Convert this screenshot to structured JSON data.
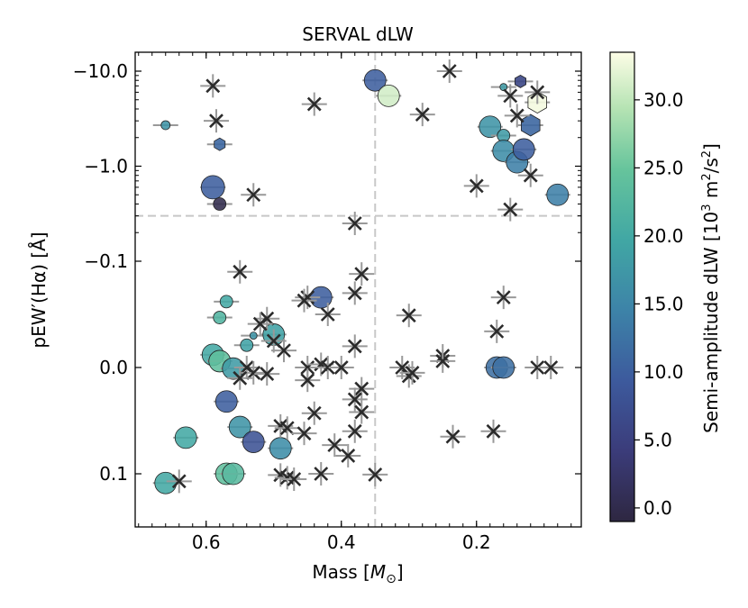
{
  "chart_data": {
    "type": "scatter",
    "title": "SERVAL dLW",
    "xlabel_text": "Mass [",
    "xlabel_sym": "M",
    "xlabel_sub": "⊙",
    "xlabel_end": "]",
    "ylabel_pre": "pEW",
    "ylabel_prime": "′",
    "ylabel_mid": "(Hα) [Å]",
    "cbar_label_pre": "Semi-amplitude dLW [10",
    "cbar_label_sup": "3",
    "cbar_label_mid": " m",
    "cbar_label_sup2": "2",
    "cbar_label_mid2": "/s",
    "cbar_label_sup3": "2",
    "cbar_label_end": "]",
    "x_reversed": true,
    "xlim": [
      0.705,
      0.045
    ],
    "y_scale": "symlog-inverted",
    "x_ticks": [
      {
        "v": 0.6,
        "label": "0.6"
      },
      {
        "v": 0.4,
        "label": "0.4"
      },
      {
        "v": 0.2,
        "label": "0.2"
      }
    ],
    "y_ticks": [
      {
        "v": -10,
        "label": "−10.0"
      },
      {
        "v": -1,
        "label": "−1.0"
      },
      {
        "v": -0.1,
        "label": "−0.1"
      },
      {
        "v": 0,
        "label": "0.0"
      },
      {
        "v": 0.1,
        "label": "0.1"
      }
    ],
    "cbar_range": [
      -1,
      33.5
    ],
    "cbar_ticks": [
      {
        "v": 0,
        "label": "0.0"
      },
      {
        "v": 5,
        "label": "5.0"
      },
      {
        "v": 10,
        "label": "10.0"
      },
      {
        "v": 15,
        "label": "15.0"
      },
      {
        "v": 20,
        "label": "20.0"
      },
      {
        "v": 25,
        "label": "25.0"
      },
      {
        "v": 30,
        "label": "30.0"
      }
    ],
    "dashed_lines": {
      "x": 0.35,
      "y": -0.3
    },
    "series": [
      {
        "marker": "circle",
        "points": [
          {
            "x": 0.66,
            "y": -2.7,
            "c": 17,
            "s": 5
          },
          {
            "x": 0.35,
            "y": -8,
            "c": 10,
            "s": 12
          },
          {
            "x": 0.33,
            "y": -5.5,
            "c": 31,
            "s": 12
          },
          {
            "x": 0.59,
            "y": -0.6,
            "c": 10,
            "s": 13
          },
          {
            "x": 0.58,
            "y": -0.4,
            "c": 0,
            "s": 7
          },
          {
            "x": 0.18,
            "y": -2.6,
            "c": 17,
            "s": 12
          },
          {
            "x": 0.16,
            "y": -2.1,
            "c": 18,
            "s": 7
          },
          {
            "x": 0.16,
            "y": -1.45,
            "c": 16,
            "s": 12
          },
          {
            "x": 0.14,
            "y": -1.1,
            "c": 14,
            "s": 12
          },
          {
            "x": 0.13,
            "y": -1.5,
            "c": 10,
            "s": 12
          },
          {
            "x": 0.08,
            "y": -0.5,
            "c": 14,
            "s": 12
          },
          {
            "x": 0.16,
            "y": -6.8,
            "c": 18,
            "s": 4
          },
          {
            "x": 0.57,
            "y": -0.062,
            "c": 20,
            "s": 7
          },
          {
            "x": 0.58,
            "y": -0.047,
            "c": 22,
            "s": 7
          },
          {
            "x": 0.43,
            "y": -0.066,
            "c": 10,
            "s": 12
          },
          {
            "x": 0.53,
            "y": -0.03,
            "c": 17,
            "s": 4
          },
          {
            "x": 0.5,
            "y": -0.031,
            "c": 19,
            "s": 12
          },
          {
            "x": 0.54,
            "y": -0.021,
            "c": 19,
            "s": 7
          },
          {
            "x": 0.59,
            "y": -0.012,
            "c": 20,
            "s": 12
          },
          {
            "x": 0.58,
            "y": -0.006,
            "c": 24,
            "s": 12
          },
          {
            "x": 0.56,
            "y": 0.001,
            "c": 18,
            "s": 12
          },
          {
            "x": 0.17,
            "y": 0,
            "c": 12,
            "s": 12
          },
          {
            "x": 0.16,
            "y": 0,
            "c": 12,
            "s": 12
          },
          {
            "x": 0.57,
            "y": 0.032,
            "c": 10,
            "s": 12
          },
          {
            "x": 0.55,
            "y": 0.056,
            "c": 17,
            "s": 12
          },
          {
            "x": 0.63,
            "y": 0.066,
            "c": 20,
            "s": 12
          },
          {
            "x": 0.53,
            "y": 0.07,
            "c": 8,
            "s": 12
          },
          {
            "x": 0.49,
            "y": 0.076,
            "c": 16,
            "s": 12
          },
          {
            "x": 0.57,
            "y": 0.1,
            "c": 24,
            "s": 12
          },
          {
            "x": 0.56,
            "y": 0.1,
            "c": 23,
            "s": 12
          },
          {
            "x": 0.66,
            "y": 0.125,
            "c": 20,
            "s": 12
          }
        ]
      },
      {
        "marker": "hexagon",
        "points": [
          {
            "x": 0.135,
            "y": -7.8,
            "c": 6,
            "s": 7
          },
          {
            "x": 0.11,
            "y": -4.7,
            "c": 33,
            "s": 12
          },
          {
            "x": 0.12,
            "y": -2.7,
            "c": 11,
            "s": 12
          },
          {
            "x": 0.58,
            "y": -1.7,
            "c": 11,
            "s": 7
          }
        ]
      },
      {
        "marker": "x",
        "points": [
          {
            "x": 0.24,
            "y": -10,
            "c": 0
          },
          {
            "x": 0.59,
            "y": -7,
            "c": 0
          },
          {
            "x": 0.44,
            "y": -4.5,
            "c": 0
          },
          {
            "x": 0.28,
            "y": -3.5,
            "c": 0
          },
          {
            "x": 0.585,
            "y": -3.0,
            "c": 0
          },
          {
            "x": 0.14,
            "y": -3.4,
            "c": 0
          },
          {
            "x": 0.15,
            "y": -5.5,
            "c": 0
          },
          {
            "x": 0.11,
            "y": -6.0,
            "c": 0
          },
          {
            "x": 0.12,
            "y": -0.8,
            "c": 0
          },
          {
            "x": 0.2,
            "y": -0.62,
            "c": 0
          },
          {
            "x": 0.53,
            "y": -0.5,
            "c": 0
          },
          {
            "x": 0.15,
            "y": -0.35,
            "c": 0
          },
          {
            "x": 0.38,
            "y": -0.25,
            "c": 0
          },
          {
            "x": 0.55,
            "y": -0.09,
            "c": 0
          },
          {
            "x": 0.37,
            "y": -0.088,
            "c": 0
          },
          {
            "x": 0.38,
            "y": -0.07,
            "c": 0
          },
          {
            "x": 0.45,
            "y": -0.066,
            "c": 0
          },
          {
            "x": 0.455,
            "y": -0.063,
            "c": 0
          },
          {
            "x": 0.42,
            "y": -0.05,
            "c": 0
          },
          {
            "x": 0.16,
            "y": -0.066,
            "c": 0
          },
          {
            "x": 0.3,
            "y": -0.049,
            "c": 0
          },
          {
            "x": 0.51,
            "y": -0.046,
            "c": 0
          },
          {
            "x": 0.52,
            "y": -0.041,
            "c": 0
          },
          {
            "x": 0.17,
            "y": -0.034,
            "c": 0
          },
          {
            "x": 0.5,
            "y": -0.025,
            "c": 0
          },
          {
            "x": 0.485,
            "y": -0.016,
            "c": 0
          },
          {
            "x": 0.38,
            "y": -0.02,
            "c": 0
          },
          {
            "x": 0.25,
            "y": -0.011,
            "c": 0
          },
          {
            "x": 0.25,
            "y": -0.006,
            "c": 0
          },
          {
            "x": 0.54,
            "y": 0,
            "c": 0
          },
          {
            "x": 0.53,
            "y": 0.005,
            "c": 0
          },
          {
            "x": 0.45,
            "y": 0,
            "c": 0
          },
          {
            "x": 0.43,
            "y": -0.003,
            "c": 0
          },
          {
            "x": 0.42,
            "y": 0.0,
            "c": 0
          },
          {
            "x": 0.4,
            "y": 0,
            "c": 0
          },
          {
            "x": 0.31,
            "y": 0,
            "c": 0
          },
          {
            "x": 0.3,
            "y": 0.008,
            "c": 0
          },
          {
            "x": 0.295,
            "y": 0.005,
            "c": 0
          },
          {
            "x": 0.11,
            "y": 0,
            "c": 0
          },
          {
            "x": 0.09,
            "y": 0,
            "c": 0
          },
          {
            "x": 0.55,
            "y": 0.01,
            "c": 0
          },
          {
            "x": 0.51,
            "y": 0.006,
            "c": 0
          },
          {
            "x": 0.45,
            "y": 0.012,
            "c": 0
          },
          {
            "x": 0.37,
            "y": 0.02,
            "c": 0
          },
          {
            "x": 0.38,
            "y": 0.03,
            "c": 0
          },
          {
            "x": 0.37,
            "y": 0.042,
            "c": 0
          },
          {
            "x": 0.44,
            "y": 0.043,
            "c": 0
          },
          {
            "x": 0.49,
            "y": 0.055,
            "c": 0
          },
          {
            "x": 0.48,
            "y": 0.057,
            "c": 0
          },
          {
            "x": 0.38,
            "y": 0.06,
            "c": 0
          },
          {
            "x": 0.455,
            "y": 0.062,
            "c": 0
          },
          {
            "x": 0.175,
            "y": 0.06,
            "c": 0
          },
          {
            "x": 0.235,
            "y": 0.065,
            "c": 0
          },
          {
            "x": 0.39,
            "y": 0.083,
            "c": 0
          },
          {
            "x": 0.41,
            "y": 0.073,
            "c": 0
          },
          {
            "x": 0.49,
            "y": 0.103,
            "c": 0
          },
          {
            "x": 0.43,
            "y": 0.1,
            "c": 0
          },
          {
            "x": 0.35,
            "y": 0.102,
            "c": 0
          },
          {
            "x": 0.48,
            "y": 0.11,
            "c": 0
          },
          {
            "x": 0.47,
            "y": 0.114,
            "c": 0
          },
          {
            "x": 0.64,
            "y": 0.12,
            "c": 0
          }
        ]
      }
    ]
  }
}
